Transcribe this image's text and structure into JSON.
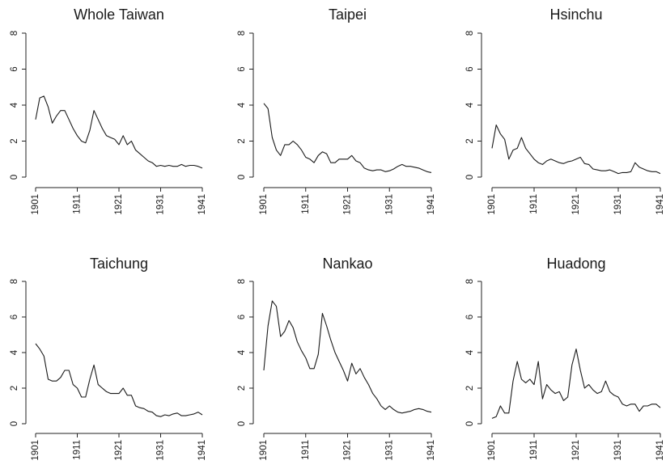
{
  "chart_data": [
    {
      "type": "line",
      "title": "Whole Taiwan",
      "x_ticks": [
        "1901",
        "1911",
        "1921",
        "1931",
        "1941"
      ],
      "y_ticks": [
        "0",
        "2",
        "4",
        "6",
        "8"
      ],
      "xlim": [
        1901,
        1941
      ],
      "ylim": [
        0,
        8
      ],
      "x": [
        1901,
        1902,
        1903,
        1904,
        1905,
        1906,
        1907,
        1908,
        1909,
        1910,
        1911,
        1912,
        1913,
        1914,
        1915,
        1916,
        1917,
        1918,
        1919,
        1920,
        1921,
        1922,
        1923,
        1924,
        1925,
        1926,
        1927,
        1928,
        1929,
        1930,
        1931,
        1932,
        1933,
        1934,
        1935,
        1936,
        1937,
        1938,
        1939,
        1940,
        1941
      ],
      "values": [
        3.2,
        4.4,
        4.5,
        3.9,
        3.0,
        3.4,
        3.7,
        3.7,
        3.2,
        2.7,
        2.3,
        2.0,
        1.9,
        2.6,
        3.7,
        3.2,
        2.7,
        2.3,
        2.2,
        2.1,
        1.8,
        2.3,
        1.8,
        2.0,
        1.5,
        1.3,
        1.1,
        0.9,
        0.8,
        0.6,
        0.65,
        0.6,
        0.65,
        0.6,
        0.6,
        0.7,
        0.6,
        0.65,
        0.65,
        0.6,
        0.5
      ]
    },
    {
      "type": "line",
      "title": "Taipei",
      "x_ticks": [
        "1901",
        "1911",
        "1921",
        "1931",
        "1941"
      ],
      "y_ticks": [
        "0",
        "2",
        "4",
        "6",
        "8"
      ],
      "xlim": [
        1901,
        1941
      ],
      "ylim": [
        0,
        8
      ],
      "x": [
        1901,
        1902,
        1903,
        1904,
        1905,
        1906,
        1907,
        1908,
        1909,
        1910,
        1911,
        1912,
        1913,
        1914,
        1915,
        1916,
        1917,
        1918,
        1919,
        1920,
        1921,
        1922,
        1923,
        1924,
        1925,
        1926,
        1927,
        1928,
        1929,
        1930,
        1931,
        1932,
        1933,
        1934,
        1935,
        1936,
        1937,
        1938,
        1939,
        1940,
        1941
      ],
      "values": [
        4.1,
        3.8,
        2.2,
        1.5,
        1.2,
        1.8,
        1.8,
        2.0,
        1.8,
        1.5,
        1.1,
        1.0,
        0.8,
        1.2,
        1.4,
        1.3,
        0.8,
        0.8,
        1.0,
        1.0,
        1.0,
        1.2,
        0.9,
        0.8,
        0.5,
        0.4,
        0.35,
        0.4,
        0.4,
        0.3,
        0.35,
        0.45,
        0.6,
        0.7,
        0.6,
        0.6,
        0.55,
        0.5,
        0.4,
        0.3,
        0.25
      ]
    },
    {
      "type": "line",
      "title": "Hsinchu",
      "x_ticks": [
        "1901",
        "1911",
        "1921",
        "1931",
        "1941"
      ],
      "y_ticks": [
        "0",
        "2",
        "4",
        "6",
        "8"
      ],
      "xlim": [
        1901,
        1941
      ],
      "ylim": [
        0,
        8
      ],
      "x": [
        1901,
        1902,
        1903,
        1904,
        1905,
        1906,
        1907,
        1908,
        1909,
        1910,
        1911,
        1912,
        1913,
        1914,
        1915,
        1916,
        1917,
        1918,
        1919,
        1920,
        1921,
        1922,
        1923,
        1924,
        1925,
        1926,
        1927,
        1928,
        1929,
        1930,
        1931,
        1932,
        1933,
        1934,
        1935,
        1936,
        1937,
        1938,
        1939,
        1940,
        1941
      ],
      "values": [
        1.6,
        2.9,
        2.4,
        2.1,
        1.0,
        1.5,
        1.6,
        2.2,
        1.6,
        1.3,
        1.0,
        0.8,
        0.7,
        0.9,
        1.0,
        0.9,
        0.8,
        0.75,
        0.85,
        0.9,
        1.0,
        1.1,
        0.75,
        0.7,
        0.45,
        0.4,
        0.35,
        0.35,
        0.4,
        0.3,
        0.2,
        0.25,
        0.25,
        0.3,
        0.8,
        0.55,
        0.45,
        0.35,
        0.3,
        0.3,
        0.2
      ]
    },
    {
      "type": "line",
      "title": "Taichung",
      "x_ticks": [
        "1901",
        "1911",
        "1921",
        "1931",
        "1941"
      ],
      "y_ticks": [
        "0",
        "2",
        "4",
        "6",
        "8"
      ],
      "xlim": [
        1901,
        1941
      ],
      "ylim": [
        0,
        8
      ],
      "x": [
        1901,
        1902,
        1903,
        1904,
        1905,
        1906,
        1907,
        1908,
        1909,
        1910,
        1911,
        1912,
        1913,
        1914,
        1915,
        1916,
        1917,
        1918,
        1919,
        1920,
        1921,
        1922,
        1923,
        1924,
        1925,
        1926,
        1927,
        1928,
        1929,
        1930,
        1931,
        1932,
        1933,
        1934,
        1935,
        1936,
        1937,
        1938,
        1939,
        1940,
        1941
      ],
      "values": [
        4.5,
        4.2,
        3.8,
        2.5,
        2.4,
        2.4,
        2.6,
        3.0,
        3.0,
        2.2,
        2.0,
        1.5,
        1.5,
        2.5,
        3.3,
        2.2,
        2.0,
        1.8,
        1.7,
        1.7,
        1.7,
        2.0,
        1.6,
        1.6,
        1.0,
        0.9,
        0.85,
        0.7,
        0.65,
        0.45,
        0.4,
        0.5,
        0.45,
        0.55,
        0.6,
        0.45,
        0.45,
        0.5,
        0.55,
        0.65,
        0.5
      ]
    },
    {
      "type": "line",
      "title": "Nankao",
      "x_ticks": [
        "1901",
        "1911",
        "1921",
        "1931",
        "1941"
      ],
      "y_ticks": [
        "0",
        "2",
        "4",
        "6",
        "8"
      ],
      "xlim": [
        1901,
        1941
      ],
      "ylim": [
        0,
        8
      ],
      "x": [
        1901,
        1902,
        1903,
        1904,
        1905,
        1906,
        1907,
        1908,
        1909,
        1910,
        1911,
        1912,
        1913,
        1914,
        1915,
        1916,
        1917,
        1918,
        1919,
        1920,
        1921,
        1922,
        1923,
        1924,
        1925,
        1926,
        1927,
        1928,
        1929,
        1930,
        1931,
        1932,
        1933,
        1934,
        1935,
        1936,
        1937,
        1938,
        1939,
        1940,
        1941
      ],
      "values": [
        3.0,
        5.5,
        6.9,
        6.6,
        4.9,
        5.2,
        5.8,
        5.4,
        4.6,
        4.1,
        3.7,
        3.1,
        3.1,
        3.9,
        6.2,
        5.5,
        4.7,
        4.0,
        3.5,
        3.0,
        2.4,
        3.4,
        2.8,
        3.1,
        2.6,
        2.2,
        1.7,
        1.4,
        1.0,
        0.8,
        1.0,
        0.8,
        0.65,
        0.6,
        0.65,
        0.7,
        0.8,
        0.85,
        0.8,
        0.7,
        0.65
      ]
    },
    {
      "type": "line",
      "title": "Huadong",
      "x_ticks": [
        "1901",
        "1911",
        "1921",
        "1931",
        "1941"
      ],
      "y_ticks": [
        "0",
        "2",
        "4",
        "6",
        "8"
      ],
      "xlim": [
        1901,
        1941
      ],
      "ylim": [
        0,
        8
      ],
      "x": [
        1901,
        1902,
        1903,
        1904,
        1905,
        1906,
        1907,
        1908,
        1909,
        1910,
        1911,
        1912,
        1913,
        1914,
        1915,
        1916,
        1917,
        1918,
        1919,
        1920,
        1921,
        1922,
        1923,
        1924,
        1925,
        1926,
        1927,
        1928,
        1929,
        1930,
        1931,
        1932,
        1933,
        1934,
        1935,
        1936,
        1937,
        1938,
        1939,
        1940,
        1941
      ],
      "values": [
        0.3,
        0.4,
        1.0,
        0.6,
        0.6,
        2.4,
        3.5,
        2.5,
        2.3,
        2.5,
        2.2,
        3.5,
        1.4,
        2.2,
        1.9,
        1.7,
        1.8,
        1.3,
        1.5,
        3.3,
        4.2,
        3.0,
        2.0,
        2.2,
        1.9,
        1.7,
        1.8,
        2.4,
        1.8,
        1.6,
        1.5,
        1.1,
        1.0,
        1.1,
        1.1,
        0.7,
        1.0,
        1.0,
        1.1,
        1.1,
        0.9
      ]
    }
  ]
}
